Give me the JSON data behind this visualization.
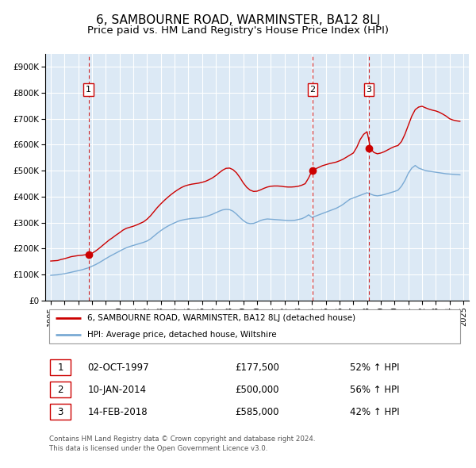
{
  "title": "6, SAMBOURNE ROAD, WARMINSTER, BA12 8LJ",
  "subtitle": "Price paid vs. HM Land Registry's House Price Index (HPI)",
  "title_fontsize": 11,
  "subtitle_fontsize": 9.5,
  "background_color": "#ffffff",
  "plot_bg_color": "#dce9f5",
  "grid_color": "#ffffff",
  "xlim": [
    1994.6,
    2025.4
  ],
  "ylim": [
    0,
    950000
  ],
  "yticks": [
    0,
    100000,
    200000,
    300000,
    400000,
    500000,
    600000,
    700000,
    800000,
    900000
  ],
  "ytick_labels": [
    "£0",
    "£100K",
    "£200K",
    "£300K",
    "£400K",
    "£500K",
    "£600K",
    "£700K",
    "£800K",
    "£900K"
  ],
  "xtick_years": [
    1995,
    1996,
    1997,
    1998,
    1999,
    2000,
    2001,
    2002,
    2003,
    2004,
    2005,
    2006,
    2007,
    2008,
    2009,
    2010,
    2011,
    2012,
    2013,
    2014,
    2015,
    2016,
    2017,
    2018,
    2019,
    2020,
    2021,
    2022,
    2023,
    2024,
    2025
  ],
  "red_line_color": "#cc0000",
  "blue_line_color": "#7aaad4",
  "sale_marker_color": "#cc0000",
  "vline_color": "#cc0000",
  "box_color": "#cc0000",
  "legend_box_color": "#999999",
  "sales": [
    {
      "year": 1997.75,
      "price": 177500,
      "label": "1"
    },
    {
      "year": 2014.03,
      "price": 500000,
      "label": "2"
    },
    {
      "year": 2018.12,
      "price": 585000,
      "label": "3"
    }
  ],
  "table_entries": [
    {
      "num": "1",
      "date": "02-OCT-1997",
      "price": "£177,500",
      "hpi": "52% ↑ HPI"
    },
    {
      "num": "2",
      "date": "10-JAN-2014",
      "price": "£500,000",
      "hpi": "56% ↑ HPI"
    },
    {
      "num": "3",
      "date": "14-FEB-2018",
      "price": "£585,000",
      "hpi": "42% ↑ HPI"
    }
  ],
  "legend_entries": [
    "6, SAMBOURNE ROAD, WARMINSTER, BA12 8LJ (detached house)",
    "HPI: Average price, detached house, Wiltshire"
  ],
  "footer": "Contains HM Land Registry data © Crown copyright and database right 2024.\nThis data is licensed under the Open Government Licence v3.0.",
  "red_line_data": {
    "x": [
      1995.0,
      1995.25,
      1995.5,
      1995.75,
      1996.0,
      1996.25,
      1996.5,
      1996.75,
      1997.0,
      1997.25,
      1997.5,
      1997.75,
      1998.0,
      1998.25,
      1998.5,
      1998.75,
      1999.0,
      1999.25,
      1999.5,
      1999.75,
      2000.0,
      2000.25,
      2000.5,
      2000.75,
      2001.0,
      2001.25,
      2001.5,
      2001.75,
      2002.0,
      2002.25,
      2002.5,
      2002.75,
      2003.0,
      2003.25,
      2003.5,
      2003.75,
      2004.0,
      2004.25,
      2004.5,
      2004.75,
      2005.0,
      2005.25,
      2005.5,
      2005.75,
      2006.0,
      2006.25,
      2006.5,
      2006.75,
      2007.0,
      2007.25,
      2007.5,
      2007.75,
      2008.0,
      2008.25,
      2008.5,
      2008.75,
      2009.0,
      2009.25,
      2009.5,
      2009.75,
      2010.0,
      2010.25,
      2010.5,
      2010.75,
      2011.0,
      2011.25,
      2011.5,
      2011.75,
      2012.0,
      2012.25,
      2012.5,
      2012.75,
      2013.0,
      2013.25,
      2013.5,
      2013.75,
      2014.0,
      2014.25,
      2014.5,
      2014.75,
      2015.0,
      2015.25,
      2015.5,
      2015.75,
      2016.0,
      2016.25,
      2016.5,
      2016.75,
      2017.0,
      2017.25,
      2017.5,
      2017.75,
      2018.0,
      2018.25,
      2018.5,
      2018.75,
      2019.0,
      2019.25,
      2019.5,
      2019.75,
      2020.0,
      2020.25,
      2020.5,
      2020.75,
      2021.0,
      2021.25,
      2021.5,
      2021.75,
      2022.0,
      2022.25,
      2022.5,
      2022.75,
      2023.0,
      2023.25,
      2023.5,
      2023.75,
      2024.0,
      2024.25,
      2024.5,
      2024.75
    ],
    "y": [
      152000,
      153000,
      154000,
      158000,
      161000,
      165000,
      169000,
      171000,
      173000,
      174000,
      176000,
      177500,
      182000,
      190000,
      200000,
      211000,
      222000,
      233000,
      242000,
      252000,
      261000,
      271000,
      278000,
      282000,
      286000,
      291000,
      297000,
      303000,
      313000,
      326000,
      342000,
      358000,
      372000,
      385000,
      397000,
      408000,
      418000,
      427000,
      435000,
      441000,
      445000,
      448000,
      450000,
      452000,
      455000,
      459000,
      465000,
      472000,
      481000,
      492000,
      502000,
      509000,
      510000,
      504000,
      492000,
      474000,
      453000,
      436000,
      425000,
      420000,
      421000,
      426000,
      432000,
      437000,
      440000,
      441000,
      441000,
      440000,
      438000,
      437000,
      437000,
      438000,
      440000,
      444000,
      450000,
      472000,
      500000,
      507000,
      513000,
      519000,
      523000,
      527000,
      530000,
      533000,
      538000,
      544000,
      552000,
      560000,
      568000,
      590000,
      620000,
      640000,
      650000,
      585000,
      570000,
      565000,
      568000,
      573000,
      580000,
      587000,
      593000,
      597000,
      612000,
      640000,
      675000,
      710000,
      735000,
      745000,
      748000,
      742000,
      737000,
      733000,
      730000,
      725000,
      718000,
      710000,
      700000,
      695000,
      692000,
      690000
    ]
  },
  "blue_line_data": {
    "x": [
      1995.0,
      1995.25,
      1995.5,
      1995.75,
      1996.0,
      1996.25,
      1996.5,
      1996.75,
      1997.0,
      1997.25,
      1997.5,
      1997.75,
      1998.0,
      1998.25,
      1998.5,
      1998.75,
      1999.0,
      1999.25,
      1999.5,
      1999.75,
      2000.0,
      2000.25,
      2000.5,
      2000.75,
      2001.0,
      2001.25,
      2001.5,
      2001.75,
      2002.0,
      2002.25,
      2002.5,
      2002.75,
      2003.0,
      2003.25,
      2003.5,
      2003.75,
      2004.0,
      2004.25,
      2004.5,
      2004.75,
      2005.0,
      2005.25,
      2005.5,
      2005.75,
      2006.0,
      2006.25,
      2006.5,
      2006.75,
      2007.0,
      2007.25,
      2007.5,
      2007.75,
      2008.0,
      2008.25,
      2008.5,
      2008.75,
      2009.0,
      2009.25,
      2009.5,
      2009.75,
      2010.0,
      2010.25,
      2010.5,
      2010.75,
      2011.0,
      2011.25,
      2011.5,
      2011.75,
      2012.0,
      2012.25,
      2012.5,
      2012.75,
      2013.0,
      2013.25,
      2013.5,
      2013.75,
      2014.0,
      2014.25,
      2014.5,
      2014.75,
      2015.0,
      2015.25,
      2015.5,
      2015.75,
      2016.0,
      2016.25,
      2016.5,
      2016.75,
      2017.0,
      2017.25,
      2017.5,
      2017.75,
      2018.0,
      2018.25,
      2018.5,
      2018.75,
      2019.0,
      2019.25,
      2019.5,
      2019.75,
      2020.0,
      2020.25,
      2020.5,
      2020.75,
      2021.0,
      2021.25,
      2021.5,
      2021.75,
      2022.0,
      2022.25,
      2022.5,
      2022.75,
      2023.0,
      2023.25,
      2023.5,
      2023.75,
      2024.0,
      2024.25,
      2024.5,
      2024.75
    ],
    "y": [
      97000,
      98000,
      99000,
      101000,
      103000,
      106000,
      109000,
      112000,
      115000,
      118000,
      122000,
      126000,
      132000,
      138000,
      145000,
      153000,
      161000,
      169000,
      176000,
      183000,
      190000,
      197000,
      203000,
      208000,
      212000,
      216000,
      220000,
      224000,
      229000,
      237000,
      248000,
      259000,
      269000,
      278000,
      286000,
      293000,
      299000,
      305000,
      309000,
      312000,
      314000,
      316000,
      317000,
      318000,
      320000,
      323000,
      327000,
      332000,
      338000,
      344000,
      349000,
      351000,
      350000,
      344000,
      333000,
      320000,
      308000,
      299000,
      296000,
      297000,
      302000,
      308000,
      312000,
      314000,
      313000,
      312000,
      311000,
      310000,
      309000,
      308000,
      308000,
      309000,
      312000,
      315000,
      321000,
      330000,
      320000,
      325000,
      330000,
      335000,
      340000,
      345000,
      350000,
      355000,
      362000,
      370000,
      380000,
      390000,
      395000,
      400000,
      405000,
      410000,
      415000,
      410000,
      405000,
      403000,
      405000,
      408000,
      412000,
      416000,
      420000,
      425000,
      440000,
      462000,
      490000,
      510000,
      520000,
      510000,
      505000,
      500000,
      498000,
      496000,
      494000,
      492000,
      490000,
      488000,
      487000,
      486000,
      485000,
      484000
    ]
  }
}
